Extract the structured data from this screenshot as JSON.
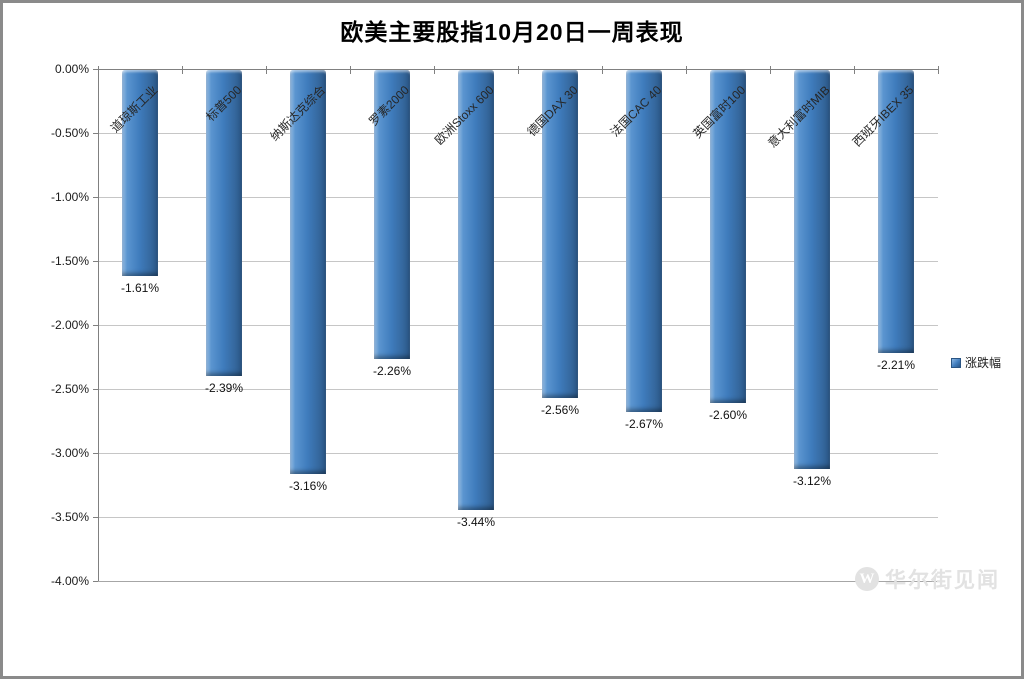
{
  "page": {
    "title": "欧美主要股指10月20日一周表现"
  },
  "legend": {
    "label": "涨跌幅"
  },
  "watermark": {
    "logo_letter": "W",
    "text": "华尔街见闻"
  },
  "colors": {
    "bar_main": "#3f7cbd",
    "bar_highlight": "#9cc2e8",
    "bar_shadow": "#2a5584",
    "gridline": "#c6c6c6",
    "axis": "#808080",
    "watermark": "#e2e2e2"
  },
  "chart_data": {
    "type": "bar",
    "title": "欧美主要股指10月20日一周表现",
    "categories": [
      "道琼斯工业",
      "标普500",
      "纳斯达克综合",
      "罗素2000",
      "欧洲Stoxx 600",
      "德国DAX 30",
      "法国CAC 40",
      "英国富时100",
      "意大利富时MIB",
      "西班牙IBEX 35"
    ],
    "series": [
      {
        "name": "涨跌幅",
        "values": [
          -1.61,
          -2.39,
          -3.16,
          -2.26,
          -3.44,
          -2.56,
          -2.67,
          -2.6,
          -3.12,
          -2.21
        ]
      }
    ],
    "value_labels": [
      "-1.61%",
      "-2.39%",
      "-3.16%",
      "-2.26%",
      "-3.44%",
      "-2.56%",
      "-2.67%",
      "-2.60%",
      "-3.12%",
      "-2.21%"
    ],
    "xlabel": "",
    "ylabel": "",
    "ylim": [
      -4,
      0
    ],
    "yticks": [
      "0.00%",
      "-0.50%",
      "-1.00%",
      "-1.50%",
      "-2.00%",
      "-2.50%",
      "-3.00%",
      "-3.50%",
      "-4.00%"
    ],
    "grid": true,
    "legend_position": "right"
  }
}
